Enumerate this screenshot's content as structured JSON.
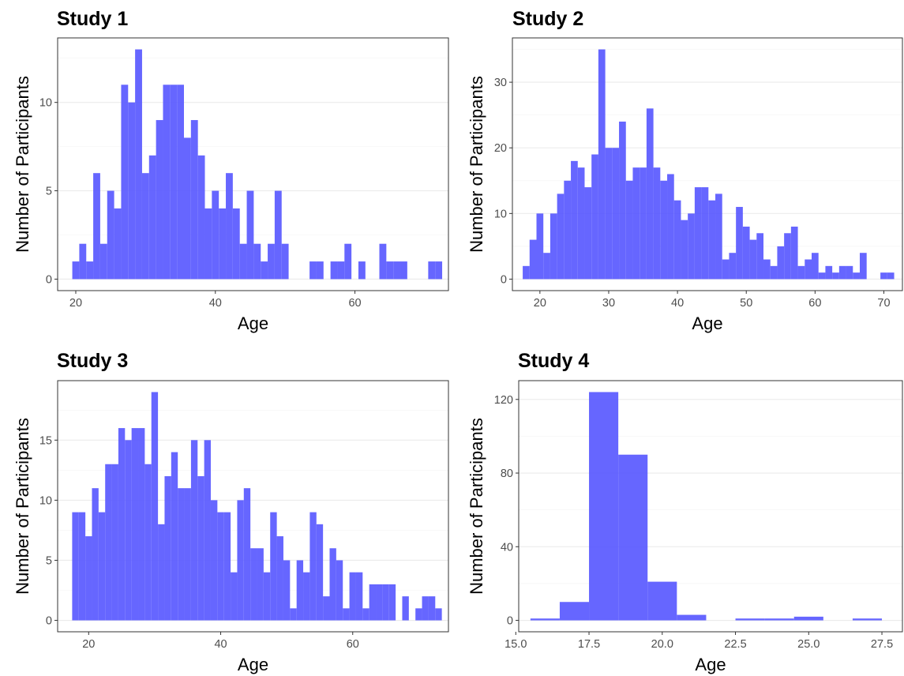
{
  "chart_data": [
    {
      "type": "bar",
      "title": "Study 1",
      "xlabel": "Age",
      "ylabel": "Number of Participants",
      "xlim": [
        17.4,
        73.4
      ],
      "ylim": [
        -0.65,
        13.65
      ],
      "xticks": [
        20,
        40,
        60
      ],
      "yticks": [
        0,
        5,
        10
      ],
      "binwidth": 1,
      "bins": [
        {
          "x": 20,
          "y": 1
        },
        {
          "x": 21,
          "y": 2
        },
        {
          "x": 22,
          "y": 1
        },
        {
          "x": 23,
          "y": 6
        },
        {
          "x": 24,
          "y": 2
        },
        {
          "x": 25,
          "y": 5
        },
        {
          "x": 26,
          "y": 4
        },
        {
          "x": 27,
          "y": 11
        },
        {
          "x": 28,
          "y": 10
        },
        {
          "x": 29,
          "y": 13
        },
        {
          "x": 30,
          "y": 6
        },
        {
          "x": 31,
          "y": 7
        },
        {
          "x": 32,
          "y": 9
        },
        {
          "x": 33,
          "y": 11
        },
        {
          "x": 34,
          "y": 11
        },
        {
          "x": 35,
          "y": 11
        },
        {
          "x": 36,
          "y": 8
        },
        {
          "x": 37,
          "y": 9
        },
        {
          "x": 38,
          "y": 7
        },
        {
          "x": 39,
          "y": 4
        },
        {
          "x": 40,
          "y": 5
        },
        {
          "x": 41,
          "y": 4
        },
        {
          "x": 42,
          "y": 6
        },
        {
          "x": 43,
          "y": 4
        },
        {
          "x": 44,
          "y": 2
        },
        {
          "x": 45,
          "y": 5
        },
        {
          "x": 46,
          "y": 2
        },
        {
          "x": 47,
          "y": 1
        },
        {
          "x": 48,
          "y": 2
        },
        {
          "x": 49,
          "y": 5
        },
        {
          "x": 50,
          "y": 2
        },
        {
          "x": 54,
          "y": 1
        },
        {
          "x": 55,
          "y": 1
        },
        {
          "x": 57,
          "y": 1
        },
        {
          "x": 58,
          "y": 1
        },
        {
          "x": 59,
          "y": 2
        },
        {
          "x": 61,
          "y": 1
        },
        {
          "x": 64,
          "y": 2
        },
        {
          "x": 65,
          "y": 1
        },
        {
          "x": 66,
          "y": 1
        },
        {
          "x": 67,
          "y": 1
        },
        {
          "x": 71,
          "y": 1
        },
        {
          "x": 72,
          "y": 1
        }
      ]
    },
    {
      "type": "bar",
      "title": "Study 2",
      "xlabel": "Age",
      "ylabel": "Number of Participants",
      "xlim": [
        16.0,
        72.7
      ],
      "ylim": [
        -1.75,
        36.75
      ],
      "xticks": [
        20,
        30,
        40,
        50,
        60,
        70
      ],
      "yticks": [
        0,
        10,
        20,
        30
      ],
      "binwidth": 1,
      "bins": [
        {
          "x": 18,
          "y": 2
        },
        {
          "x": 19,
          "y": 6
        },
        {
          "x": 20,
          "y": 10
        },
        {
          "x": 21,
          "y": 4
        },
        {
          "x": 22,
          "y": 10
        },
        {
          "x": 23,
          "y": 13
        },
        {
          "x": 24,
          "y": 15
        },
        {
          "x": 25,
          "y": 18
        },
        {
          "x": 26,
          "y": 17
        },
        {
          "x": 27,
          "y": 14
        },
        {
          "x": 28,
          "y": 19
        },
        {
          "x": 29,
          "y": 35
        },
        {
          "x": 30,
          "y": 20
        },
        {
          "x": 31,
          "y": 20
        },
        {
          "x": 32,
          "y": 24
        },
        {
          "x": 33,
          "y": 15
        },
        {
          "x": 34,
          "y": 17
        },
        {
          "x": 35,
          "y": 17
        },
        {
          "x": 36,
          "y": 26
        },
        {
          "x": 37,
          "y": 17
        },
        {
          "x": 38,
          "y": 15
        },
        {
          "x": 39,
          "y": 16
        },
        {
          "x": 40,
          "y": 12
        },
        {
          "x": 41,
          "y": 9
        },
        {
          "x": 42,
          "y": 10
        },
        {
          "x": 43,
          "y": 14
        },
        {
          "x": 44,
          "y": 14
        },
        {
          "x": 45,
          "y": 12
        },
        {
          "x": 46,
          "y": 13
        },
        {
          "x": 47,
          "y": 3
        },
        {
          "x": 48,
          "y": 4
        },
        {
          "x": 49,
          "y": 11
        },
        {
          "x": 50,
          "y": 8
        },
        {
          "x": 51,
          "y": 6
        },
        {
          "x": 52,
          "y": 7
        },
        {
          "x": 53,
          "y": 3
        },
        {
          "x": 54,
          "y": 2
        },
        {
          "x": 55,
          "y": 5
        },
        {
          "x": 56,
          "y": 7
        },
        {
          "x": 57,
          "y": 8
        },
        {
          "x": 58,
          "y": 2
        },
        {
          "x": 59,
          "y": 3
        },
        {
          "x": 60,
          "y": 4
        },
        {
          "x": 61,
          "y": 1
        },
        {
          "x": 62,
          "y": 2
        },
        {
          "x": 63,
          "y": 1
        },
        {
          "x": 64,
          "y": 2
        },
        {
          "x": 65,
          "y": 2
        },
        {
          "x": 66,
          "y": 1
        },
        {
          "x": 67,
          "y": 4
        },
        {
          "x": 70,
          "y": 1
        },
        {
          "x": 71,
          "y": 1
        }
      ]
    },
    {
      "type": "bar",
      "title": "Study 3",
      "xlabel": "Age",
      "ylabel": "Number of Participants",
      "xlim": [
        15.3,
        74.5
      ],
      "ylim": [
        -0.95,
        19.95
      ],
      "xticks": [
        20,
        40,
        60
      ],
      "yticks": [
        0,
        5,
        10,
        15
      ],
      "binwidth": 1,
      "bins": [
        {
          "x": 18,
          "y": 9
        },
        {
          "x": 19,
          "y": 9
        },
        {
          "x": 20,
          "y": 7
        },
        {
          "x": 21,
          "y": 11
        },
        {
          "x": 22,
          "y": 9
        },
        {
          "x": 23,
          "y": 13
        },
        {
          "x": 24,
          "y": 13
        },
        {
          "x": 25,
          "y": 16
        },
        {
          "x": 26,
          "y": 15
        },
        {
          "x": 27,
          "y": 16
        },
        {
          "x": 28,
          "y": 16
        },
        {
          "x": 29,
          "y": 13
        },
        {
          "x": 30,
          "y": 19
        },
        {
          "x": 31,
          "y": 8
        },
        {
          "x": 32,
          "y": 12
        },
        {
          "x": 33,
          "y": 14
        },
        {
          "x": 34,
          "y": 11
        },
        {
          "x": 35,
          "y": 11
        },
        {
          "x": 36,
          "y": 15
        },
        {
          "x": 37,
          "y": 12
        },
        {
          "x": 38,
          "y": 15
        },
        {
          "x": 39,
          "y": 10
        },
        {
          "x": 40,
          "y": 9
        },
        {
          "x": 41,
          "y": 9
        },
        {
          "x": 42,
          "y": 4
        },
        {
          "x": 43,
          "y": 10
        },
        {
          "x": 44,
          "y": 11
        },
        {
          "x": 45,
          "y": 6
        },
        {
          "x": 46,
          "y": 6
        },
        {
          "x": 47,
          "y": 4
        },
        {
          "x": 48,
          "y": 9
        },
        {
          "x": 49,
          "y": 7
        },
        {
          "x": 50,
          "y": 5
        },
        {
          "x": 51,
          "y": 1
        },
        {
          "x": 52,
          "y": 5
        },
        {
          "x": 53,
          "y": 4
        },
        {
          "x": 54,
          "y": 9
        },
        {
          "x": 55,
          "y": 8
        },
        {
          "x": 56,
          "y": 2
        },
        {
          "x": 57,
          "y": 6
        },
        {
          "x": 58,
          "y": 5
        },
        {
          "x": 59,
          "y": 1
        },
        {
          "x": 60,
          "y": 4
        },
        {
          "x": 61,
          "y": 4
        },
        {
          "x": 62,
          "y": 1
        },
        {
          "x": 63,
          "y": 3
        },
        {
          "x": 64,
          "y": 3
        },
        {
          "x": 65,
          "y": 3
        },
        {
          "x": 66,
          "y": 3
        },
        {
          "x": 68,
          "y": 2
        },
        {
          "x": 70,
          "y": 1
        },
        {
          "x": 71,
          "y": 2
        },
        {
          "x": 72,
          "y": 2
        },
        {
          "x": 73,
          "y": 1
        }
      ]
    },
    {
      "type": "bar",
      "title": "Study 4",
      "xlabel": "Age",
      "ylabel": "Number of Participants",
      "xlim": [
        15.1,
        28.2
      ],
      "ylim": [
        -6.2,
        130.2
      ],
      "xticks": [
        15.0,
        17.5,
        20.0,
        22.5,
        25.0,
        27.5
      ],
      "xtick_labels": [
        "15.0",
        "17.5",
        "20.0",
        "22.5",
        "25.0",
        "27.5"
      ],
      "yticks": [
        0,
        40,
        80,
        120
      ],
      "binwidth": 1,
      "bins": [
        {
          "x": 16,
          "y": 1
        },
        {
          "x": 17,
          "y": 10
        },
        {
          "x": 18,
          "y": 124
        },
        {
          "x": 19,
          "y": 90
        },
        {
          "x": 20,
          "y": 21
        },
        {
          "x": 21,
          "y": 3
        },
        {
          "x": 23,
          "y": 1
        },
        {
          "x": 24,
          "y": 1
        },
        {
          "x": 25,
          "y": 2
        },
        {
          "x": 27,
          "y": 1
        }
      ]
    }
  ],
  "colors": {
    "bar_fill": "#5555ff",
    "grid": "#ebebeb",
    "border": "#333333",
    "tick_text": "#4d4d4d"
  }
}
